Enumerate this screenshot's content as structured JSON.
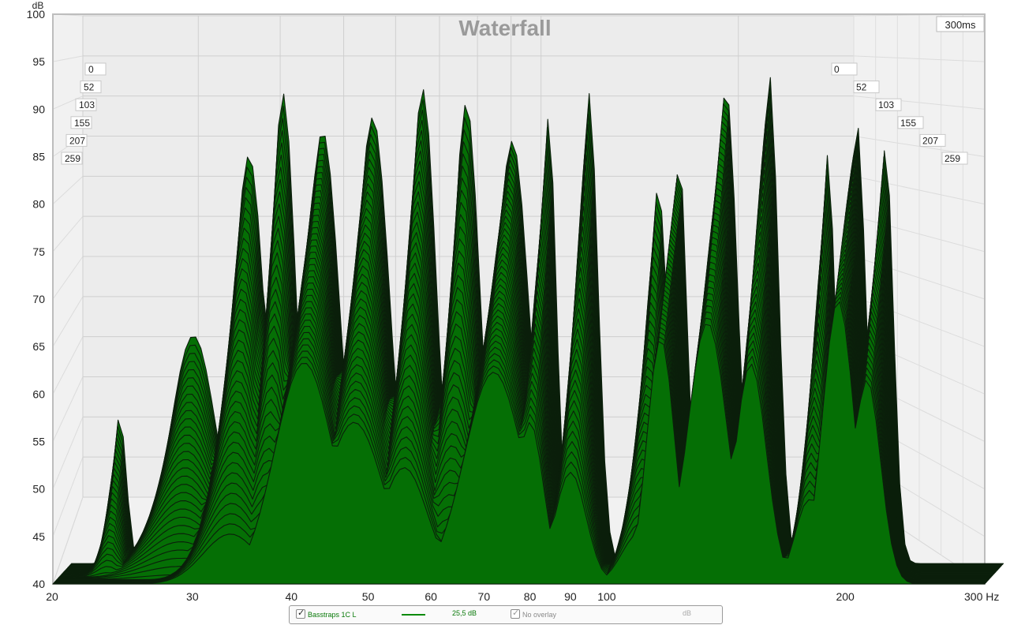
{
  "chart_data": {
    "type": "area",
    "title": "Waterfall",
    "ylabel": "dB",
    "xlabel": "Hz",
    "time_window_label": "300ms",
    "y_ticks": [
      40,
      45,
      50,
      55,
      60,
      65,
      70,
      75,
      80,
      85,
      90,
      95,
      100
    ],
    "ylim": [
      40,
      100
    ],
    "x_tick_labels": [
      "20",
      "30",
      "40",
      "50",
      "60",
      "70",
      "80",
      "90",
      "100",
      "200",
      "300 Hz"
    ],
    "x_tick_values": [
      20,
      30,
      40,
      50,
      60,
      70,
      80,
      90,
      100,
      200,
      300
    ],
    "xlim": [
      20,
      300
    ],
    "x_scale": "log",
    "grid": true,
    "time_slice_labels": [
      "0",
      "52",
      "103",
      "155",
      "207",
      "259"
    ],
    "series_color": "#056f05",
    "slice_count": 38,
    "front_slice_peaks": [
      {
        "hz": 23.0,
        "db": 55.5,
        "width": 0.012
      },
      {
        "hz": 28.5,
        "db": 64.0,
        "width": 0.04
      },
      {
        "hz": 33.5,
        "db": 83.0,
        "width": 0.028
      },
      {
        "hz": 37.0,
        "db": 89.5,
        "width": 0.022
      },
      {
        "hz": 41.5,
        "db": 85.5,
        "width": 0.03
      },
      {
        "hz": 48.0,
        "db": 87.0,
        "width": 0.03
      },
      {
        "hz": 55.5,
        "db": 90.0,
        "width": 0.024
      },
      {
        "hz": 63.0,
        "db": 88.5,
        "width": 0.024
      },
      {
        "hz": 72.0,
        "db": 84.5,
        "width": 0.03
      },
      {
        "hz": 80.0,
        "db": 87.0,
        "width": 0.014
      },
      {
        "hz": 90.0,
        "db": 89.5,
        "width": 0.016
      },
      {
        "hz": 110.0,
        "db": 79.5,
        "width": 0.018
      },
      {
        "hz": 117.0,
        "db": 82.5,
        "width": 0.014
      },
      {
        "hz": 134.0,
        "db": 90.0,
        "width": 0.02
      },
      {
        "hz": 152.0,
        "db": 91.5,
        "width": 0.016
      },
      {
        "hz": 180.0,
        "db": 83.0,
        "width": 0.014
      },
      {
        "hz": 196.0,
        "db": 86.5,
        "width": 0.016
      },
      {
        "hz": 213.0,
        "db": 84.0,
        "width": 0.014
      }
    ],
    "decay_db_per_slice": 0.6
  },
  "legend": {
    "measurement_name": "Basstraps 1C L",
    "measurement_level": "25,5 dB",
    "overlay_label": "No overlay",
    "unit": "dB",
    "line_color": "#0a8a0a"
  }
}
